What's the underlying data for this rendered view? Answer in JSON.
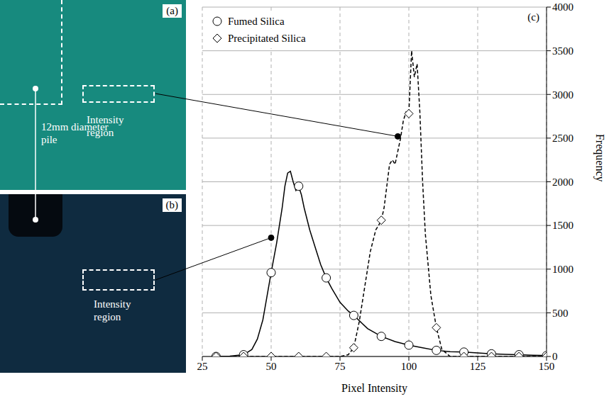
{
  "panels": [
    {
      "letter": "(a)",
      "labels": [
        "12mm diameter pile",
        "Intensity region"
      ]
    },
    {
      "letter": "(b)",
      "labels": [
        "Intensity region"
      ]
    }
  ],
  "chart_data": {
    "type": "line",
    "annotations": [
      "(c)"
    ],
    "x_label": "Pixel Intensity",
    "y_label": "Frequency",
    "xlim": [
      25,
      150
    ],
    "xticks": [
      25,
      50,
      75,
      100,
      125,
      150
    ],
    "ylim": [
      0,
      4000
    ],
    "yticks": [
      0,
      500,
      1000,
      1500,
      2000,
      2500,
      3000,
      3500,
      4000
    ],
    "grid": true,
    "legend": "upper left",
    "series": [
      {
        "name": "Fumed Silica",
        "color": "#000000",
        "marker": "circle",
        "line_style": "solid",
        "x": [
          30,
          35,
          40,
          43,
          45,
          47,
          48,
          50,
          52,
          54,
          55,
          56,
          57,
          58,
          59,
          60,
          61,
          62,
          64,
          66,
          68,
          70,
          72,
          75,
          78,
          80,
          85,
          90,
          95,
          100,
          105,
          110,
          115,
          120,
          125,
          130,
          135,
          140,
          145,
          150
        ],
        "values": [
          0,
          5,
          20,
          80,
          200,
          420,
          600,
          960,
          1300,
          1700,
          1950,
          2100,
          2120,
          2000,
          1900,
          1950,
          1850,
          1700,
          1450,
          1250,
          1050,
          900,
          780,
          620,
          520,
          470,
          320,
          230,
          170,
          130,
          100,
          70,
          55,
          50,
          40,
          30,
          25,
          20,
          15,
          10
        ]
      },
      {
        "name": "Precipitated Silica",
        "color": "#000000",
        "marker": "diamond",
        "line_style": "dashed",
        "x": [
          30,
          40,
          50,
          60,
          70,
          75,
          78,
          80,
          82,
          84,
          86,
          88,
          89,
          90,
          91,
          92,
          93,
          94,
          95,
          96,
          97,
          98,
          99,
          100,
          101,
          102,
          103,
          104,
          105,
          106,
          108,
          110,
          112,
          115,
          120,
          130,
          140,
          150
        ],
        "values": [
          0,
          0,
          0,
          0,
          0,
          0,
          20,
          100,
          400,
          800,
          1200,
          1450,
          1500,
          1560,
          1700,
          1950,
          2200,
          2250,
          2200,
          2350,
          2500,
          2700,
          2800,
          2780,
          3500,
          3200,
          3350,
          2800,
          2000,
          1400,
          700,
          330,
          80,
          0,
          0,
          0,
          0,
          0
        ]
      }
    ],
    "leaders": [
      {
        "panel": "(a)",
        "x": 96,
        "y": 2520
      },
      {
        "panel": "(b)",
        "x": 50,
        "y": 1360
      }
    ]
  }
}
